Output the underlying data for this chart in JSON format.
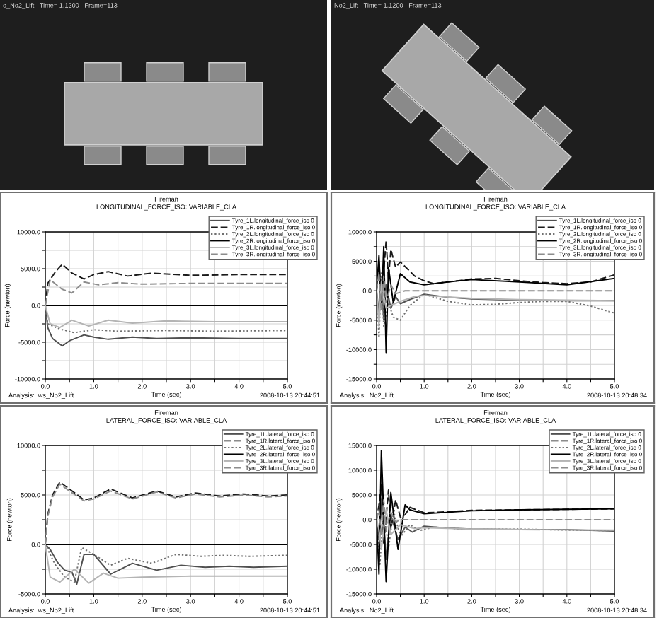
{
  "chart_data": [
    {
      "type": "other",
      "title": "o_No2_Lift   Time= 1.1200   Frame=113"
    },
    {
      "type": "other",
      "title": "No2_Lift   Time= 1.1200   Frame=113"
    },
    {
      "type": "line",
      "title": "Fireman",
      "subtitle": "LONGITUDINAL_FORCE_ISO: VARIABLE_CLA",
      "xlabel": "Time (sec)",
      "ylabel": "Force (newton)",
      "annotations": [
        "Analysis:  ws_No2_Lift",
        "2008-10-13 20:44:51"
      ],
      "xlim": [
        0,
        5
      ],
      "ylim": [
        -10000,
        10000
      ],
      "xticks": [
        {
          "value": 0,
          "label": "0.0"
        },
        {
          "value": 0.5,
          "label": null
        },
        {
          "value": 1,
          "label": "1.0"
        },
        {
          "value": 1.5,
          "label": null
        },
        {
          "value": 2,
          "label": "2.0"
        },
        {
          "value": 2.5,
          "label": null
        },
        {
          "value": 3,
          "label": "3.0"
        },
        {
          "value": 3.5,
          "label": null
        },
        {
          "value": 4,
          "label": "4.0"
        },
        {
          "value": 4.5,
          "label": null
        },
        {
          "value": 5,
          "label": "5.0"
        }
      ],
      "yticks": [
        {
          "value": -10000,
          "label": "-10000.0"
        },
        {
          "value": -7500,
          "label": null
        },
        {
          "value": -5000,
          "label": "-5000.0"
        },
        {
          "value": -2500,
          "label": null
        },
        {
          "value": 0,
          "label": "0.0"
        },
        {
          "value": 2500,
          "label": null
        },
        {
          "value": 5000,
          "label": "5000.0"
        },
        {
          "value": 7500,
          "label": null
        },
        {
          "value": 10000,
          "label": "10000.0"
        }
      ],
      "grid": true,
      "legend": "top right",
      "series": [
        {
          "name": "Tyre_1L.longitudinal_force_iso 0",
          "color": "#505050",
          "line_style": "solid",
          "x": [
            0,
            0.05,
            0.15,
            0.35,
            0.5,
            0.8,
            1.0,
            1.3,
            1.8,
            2.3,
            3.0,
            4.0,
            5.0
          ],
          "values": [
            0,
            -3000,
            -4500,
            -5500,
            -4800,
            -4000,
            -4300,
            -4600,
            -4300,
            -4500,
            -4400,
            -4500,
            -4500
          ]
        },
        {
          "name": "Tyre_1R.longitudinal_force_iso 0",
          "color": "#1a1a1a",
          "line_style": "dashed",
          "x": [
            0,
            0.05,
            0.2,
            0.35,
            0.55,
            0.8,
            1.0,
            1.3,
            1.7,
            2.2,
            3.0,
            4.0,
            5.0
          ],
          "values": [
            0,
            3000,
            4500,
            5600,
            4400,
            3600,
            4200,
            4600,
            4000,
            4400,
            4100,
            4200,
            4200
          ]
        },
        {
          "name": "Tyre_2L.longitudinal_force_iso 0",
          "color": "#707070",
          "line_style": "dotted",
          "x": [
            0,
            0.05,
            0.3,
            0.6,
            1.0,
            1.5,
            2.5,
            3.5,
            5.0
          ],
          "values": [
            0,
            -2500,
            -3200,
            -3700,
            -3300,
            -3500,
            -3400,
            -3500,
            -3400
          ]
        },
        {
          "name": "Tyre_2R.longitudinal_force_iso 0",
          "color": "#000000",
          "line_style": "solid",
          "x": [
            0,
            5.0
          ],
          "values": [
            0,
            0
          ]
        },
        {
          "name": "Tyre_3L.longitudinal_force_iso 0",
          "color": "#b4b4b4",
          "line_style": "solid",
          "x": [
            0,
            0.1,
            0.3,
            0.55,
            0.9,
            1.3,
            1.8,
            2.5,
            3.5,
            5.0
          ],
          "values": [
            0,
            -2500,
            -3000,
            -2000,
            -2800,
            -2000,
            -2400,
            -2100,
            -2200,
            -2200
          ]
        },
        {
          "name": "Tyre_3R.longitudinal_force_iso 0",
          "color": "#8c8c8c",
          "line_style": "dashed",
          "x": [
            0,
            0.1,
            0.35,
            0.55,
            0.8,
            1.1,
            1.5,
            2.0,
            3.0,
            4.0,
            5.0
          ],
          "values": [
            0,
            3500,
            2200,
            1700,
            3200,
            2800,
            3100,
            2900,
            3000,
            3000,
            3000
          ]
        }
      ]
    },
    {
      "type": "line",
      "title": "Fireman",
      "subtitle": "LONGITUDINAL_FORCE_ISO: VARIABLE_CLA",
      "xlabel": "Time (sec)",
      "ylabel": "Force (newton)",
      "annotations": [
        "Analysis:  No2_Lift",
        "2008-10-13 20:48:34"
      ],
      "xlim": [
        0,
        5
      ],
      "ylim": [
        -15000,
        10000
      ],
      "xticks": [
        {
          "value": 0,
          "label": "0.0"
        },
        {
          "value": 0.5,
          "label": null
        },
        {
          "value": 1,
          "label": "1.0"
        },
        {
          "value": 1.5,
          "label": null
        },
        {
          "value": 2,
          "label": "2.0"
        },
        {
          "value": 2.5,
          "label": null
        },
        {
          "value": 3,
          "label": "3.0"
        },
        {
          "value": 3.5,
          "label": null
        },
        {
          "value": 4,
          "label": "4.0"
        },
        {
          "value": 4.5,
          "label": null
        },
        {
          "value": 5,
          "label": "5.0"
        }
      ],
      "yticks": [
        {
          "value": -15000,
          "label": "-15000.0"
        },
        {
          "value": -12500,
          "label": null
        },
        {
          "value": -10000,
          "label": "-10000.0"
        },
        {
          "value": -7500,
          "label": null
        },
        {
          "value": -5000,
          "label": "-5000.0"
        },
        {
          "value": -2500,
          "label": null
        },
        {
          "value": 0,
          "label": "0.0"
        },
        {
          "value": 2500,
          "label": null
        },
        {
          "value": 5000,
          "label": "5000.0"
        },
        {
          "value": 7500,
          "label": null
        },
        {
          "value": 10000,
          "label": "10000.0"
        }
      ],
      "grid": true,
      "legend": "top right",
      "series": [
        {
          "name": "Tyre_1L.longitudinal_force_iso 0",
          "color": "#505050",
          "line_style": "solid",
          "x": [
            0,
            0.05,
            0.1,
            0.15,
            0.2,
            0.3,
            0.4,
            0.5,
            0.7,
            1.0,
            1.5,
            2.0,
            3.0,
            4.0,
            5.0
          ],
          "values": [
            0,
            -4000,
            2000,
            -5000,
            1000,
            -3000,
            -1000,
            -2200,
            -1500,
            -600,
            -1100,
            -1400,
            -1600,
            -1700,
            -1700
          ]
        },
        {
          "name": "Tyre_1R.longitudinal_force_iso 0",
          "color": "#1a1a1a",
          "line_style": "dashed",
          "x": [
            0,
            0.05,
            0.1,
            0.2,
            0.25,
            0.3,
            0.4,
            0.5,
            0.8,
            1.0,
            1.2,
            1.6,
            2.0,
            2.5,
            3.0,
            3.5,
            4.0,
            4.5,
            5.0
          ],
          "values": [
            0,
            5000,
            -2000,
            8500,
            2000,
            7000,
            4000,
            4900,
            2500,
            1700,
            1200,
            1600,
            2000,
            2100,
            1700,
            1400,
            1200,
            1500,
            2700
          ]
        },
        {
          "name": "Tyre_2L.longitudinal_force_iso 0",
          "color": "#707070",
          "line_style": "dotted",
          "x": [
            0,
            0.05,
            0.1,
            0.15,
            0.25,
            0.35,
            0.5,
            0.7,
            1.0,
            1.5,
            2.0,
            2.5,
            3.0,
            3.5,
            4.0,
            4.5,
            5.0
          ],
          "values": [
            0,
            -8000,
            3000,
            -6000,
            -2000,
            -4500,
            -5000,
            -2500,
            -600,
            -1800,
            -2400,
            -2300,
            -2000,
            -1800,
            -1800,
            -2600,
            -3800
          ]
        },
        {
          "name": "Tyre_2R.longitudinal_force_iso 0",
          "color": "#000000",
          "line_style": "solid",
          "x": [
            0,
            0.05,
            0.1,
            0.15,
            0.2,
            0.25,
            0.35,
            0.5,
            0.7,
            1.0,
            1.5,
            2.0,
            3.0,
            4.0,
            5.0
          ],
          "values": [
            0,
            6000,
            -3000,
            7500,
            -10500,
            4000,
            -2000,
            2900,
            1500,
            1000,
            1500,
            1900,
            1500,
            1000,
            2100
          ]
        },
        {
          "name": "Tyre_3L.longitudinal_force_iso 0",
          "color": "#b4b4b4",
          "line_style": "solid",
          "x": [
            0,
            0.05,
            0.1,
            0.2,
            0.3,
            0.5,
            0.8,
            1.0,
            2.0,
            3.0,
            4.0,
            5.0
          ],
          "values": [
            0,
            -6000,
            1500,
            -3000,
            -2500,
            -1800,
            -1000,
            -800,
            -1300,
            -1500,
            -1600,
            -1700
          ]
        },
        {
          "name": "Tyre_3R.longitudinal_force_iso 0",
          "color": "#8c8c8c",
          "line_style": "dashed",
          "x": [
            0,
            0.05,
            0.1,
            0.15,
            0.2,
            0.3,
            0.4,
            0.6,
            1.0,
            5.0
          ],
          "values": [
            0,
            3000,
            -3500,
            2500,
            -2000,
            1000,
            -500,
            0,
            0,
            0
          ]
        }
      ]
    },
    {
      "type": "line",
      "title": "Fireman",
      "subtitle": "LATERAL_FORCE_ISO: VARIABLE_CLA",
      "xlabel": "Time (sec)",
      "ylabel": "Force (newton)",
      "annotations": [
        "Analysis:  ws_No2_Lift",
        "2008-10-13 20:44:51"
      ],
      "xlim": [
        0,
        5
      ],
      "ylim": [
        -5000,
        10000
      ],
      "xticks": [
        {
          "value": 0,
          "label": "0.0"
        },
        {
          "value": 0.5,
          "label": null
        },
        {
          "value": 1,
          "label": "1.0"
        },
        {
          "value": 1.5,
          "label": null
        },
        {
          "value": 2,
          "label": "2.0"
        },
        {
          "value": 2.5,
          "label": null
        },
        {
          "value": 3,
          "label": "3.0"
        },
        {
          "value": 3.5,
          "label": null
        },
        {
          "value": 4,
          "label": "4.0"
        },
        {
          "value": 4.5,
          "label": null
        },
        {
          "value": 5,
          "label": "5.0"
        }
      ],
      "yticks": [
        {
          "value": -5000,
          "label": "-5000.0"
        },
        {
          "value": -2500,
          "label": null
        },
        {
          "value": 0,
          "label": "0.0"
        },
        {
          "value": 2500,
          "label": null
        },
        {
          "value": 5000,
          "label": "5000.0"
        },
        {
          "value": 7500,
          "label": null
        },
        {
          "value": 10000,
          "label": "10000.0"
        }
      ],
      "grid": true,
      "legend": "top right",
      "series": [
        {
          "name": "Tyre_1L.lateral_force_iso 0",
          "color": "#505050",
          "line_style": "solid",
          "x": [
            0,
            0.1,
            0.25,
            0.4,
            0.55,
            0.65,
            0.8,
            1.0,
            1.35,
            1.8,
            2.3,
            2.8,
            3.3,
            3.8,
            4.3,
            5.0
          ],
          "values": [
            0,
            -500,
            -1800,
            -2600,
            -2800,
            -4000,
            -1000,
            -1000,
            -3000,
            -1900,
            -2600,
            -2100,
            -2300,
            -2200,
            -2300,
            -2200
          ]
        },
        {
          "name": "Tyre_1R.lateral_force_iso 0",
          "color": "#1a1a1a",
          "line_style": "dashed",
          "x": [
            0,
            0.05,
            0.15,
            0.3,
            0.5,
            0.8,
            1.0,
            1.35,
            1.8,
            2.3,
            2.7,
            3.1,
            3.6,
            4.1,
            4.6,
            5.0
          ],
          "values": [
            0,
            3000,
            5000,
            6300,
            5600,
            4500,
            4700,
            5600,
            4700,
            5400,
            4800,
            5200,
            4900,
            5100,
            4900,
            5000
          ]
        },
        {
          "name": "Tyre_2L.lateral_force_iso 0",
          "color": "#707070",
          "line_style": "dotted",
          "x": [
            0,
            0.2,
            0.4,
            0.6,
            0.75,
            1.0,
            1.35,
            1.7,
            2.2,
            2.7,
            3.2,
            3.7,
            4.2,
            5.0
          ],
          "values": [
            0,
            -2000,
            -3300,
            -3800,
            -300,
            -1000,
            -2100,
            -1400,
            -1900,
            -1000,
            -1200,
            -1100,
            -1200,
            -1100
          ]
        },
        {
          "name": "Tyre_2R.lateral_force_iso 0",
          "color": "#000000",
          "line_style": "solid",
          "x": [
            0,
            5.0
          ],
          "values": [
            0,
            0
          ]
        },
        {
          "name": "Tyre_3L.lateral_force_iso 0",
          "color": "#b4b4b4",
          "line_style": "solid",
          "x": [
            0,
            0.1,
            0.3,
            0.6,
            0.9,
            1.2,
            1.5,
            2.0,
            3.0,
            4.0,
            5.0
          ],
          "values": [
            0,
            -3300,
            -3800,
            -2500,
            -3900,
            -2900,
            -3400,
            -3300,
            -3200,
            -3200,
            -3200
          ]
        },
        {
          "name": "Tyre_3R.lateral_force_iso 0",
          "color": "#8c8c8c",
          "line_style": "dashed",
          "x": [
            0,
            0.05,
            0.15,
            0.3,
            0.5,
            0.8,
            1.0,
            1.35,
            1.8,
            2.3,
            2.7,
            3.1,
            3.6,
            4.1,
            4.6,
            5.0
          ],
          "values": [
            0,
            2800,
            4800,
            6100,
            5400,
            4400,
            4600,
            5400,
            4600,
            5300,
            4700,
            5100,
            4800,
            5000,
            4800,
            4900
          ]
        }
      ]
    },
    {
      "type": "line",
      "title": "Fireman",
      "subtitle": "LATERAL_FORCE_ISO: VARIABLE_CLA",
      "xlabel": "Time (sec)",
      "ylabel": "Force (newton)",
      "annotations": [
        "Analysis:  No2_Lift",
        "2008-10-13 20:48:34"
      ],
      "xlim": [
        0,
        5
      ],
      "ylim": [
        -15000,
        15000
      ],
      "xticks": [
        {
          "value": 0,
          "label": "0.0"
        },
        {
          "value": 0.5,
          "label": null
        },
        {
          "value": 1,
          "label": "1.0"
        },
        {
          "value": 1.5,
          "label": null
        },
        {
          "value": 2,
          "label": "2.0"
        },
        {
          "value": 2.5,
          "label": null
        },
        {
          "value": 3,
          "label": "3.0"
        },
        {
          "value": 3.5,
          "label": null
        },
        {
          "value": 4,
          "label": "4.0"
        },
        {
          "value": 4.5,
          "label": null
        },
        {
          "value": 5,
          "label": "5.0"
        }
      ],
      "yticks": [
        {
          "value": -15000,
          "label": "-15000.0"
        },
        {
          "value": -10000,
          "label": "-10000.0"
        },
        {
          "value": -5000,
          "label": "-5000.0"
        },
        {
          "value": 0,
          "label": "0.0"
        },
        {
          "value": 5000,
          "label": "5000.0"
        },
        {
          "value": 10000,
          "label": "10000.0"
        },
        {
          "value": 15000,
          "label": "15000.0"
        }
      ],
      "grid": true,
      "legend": "top right",
      "series": [
        {
          "name": "Tyre_1L.lateral_force_iso 0",
          "color": "#505050",
          "line_style": "solid",
          "x": [
            0,
            0.05,
            0.12,
            0.2,
            0.3,
            0.45,
            0.6,
            0.75,
            1.0,
            1.5,
            2.0,
            3.0,
            4.0,
            5.0
          ],
          "values": [
            0,
            -4000,
            5000,
            -8000,
            1000,
            -4000,
            -1500,
            -2500,
            -1300,
            -1700,
            -1900,
            -2000,
            -2000,
            -2300
          ]
        },
        {
          "name": "Tyre_1R.lateral_force_iso 0",
          "color": "#1a1a1a",
          "line_style": "dashed",
          "x": [
            0,
            0.05,
            0.1,
            0.15,
            0.25,
            0.3,
            0.4,
            0.5,
            0.6,
            0.7,
            1.0,
            1.5,
            2.0,
            3.0,
            4.0,
            5.0
          ],
          "values": [
            0,
            3000,
            7000,
            -5000,
            6000,
            -2000,
            4000,
            500,
            1000,
            2500,
            1400,
            1600,
            1900,
            2000,
            2100,
            2200
          ]
        },
        {
          "name": "Tyre_2L.lateral_force_iso 0",
          "color": "#707070",
          "line_style": "dotted",
          "x": [
            0,
            0.07,
            0.15,
            0.25,
            0.35,
            0.5,
            0.7,
            0.9,
            1.2,
            2.0,
            3.0,
            4.0,
            5.0
          ],
          "values": [
            0,
            -9000,
            3000,
            -6000,
            2000,
            -3500,
            -1000,
            -2200,
            -1500,
            -2000,
            -1900,
            -2100,
            -2200
          ]
        },
        {
          "name": "Tyre_2R.lateral_force_iso 0",
          "color": "#000000",
          "line_style": "solid",
          "x": [
            0,
            0.05,
            0.1,
            0.2,
            0.3,
            0.45,
            0.6,
            0.7,
            1.0,
            2.0,
            3.0,
            4.0,
            5.0
          ],
          "values": [
            0,
            -11000,
            14000,
            -12500,
            5500,
            -6000,
            3000,
            2000,
            1200,
            1800,
            2000,
            2100,
            2200
          ]
        },
        {
          "name": "Tyre_3L.lateral_force_iso 0",
          "color": "#b4b4b4",
          "line_style": "solid",
          "x": [
            0,
            0.05,
            0.1,
            0.2,
            0.3,
            0.5,
            0.8,
            1.0,
            2.0,
            3.0,
            5.0
          ],
          "values": [
            0,
            -2000,
            -6000,
            2000,
            -3000,
            -1000,
            -1800,
            -1600,
            -1900,
            -2000,
            -2100
          ]
        },
        {
          "name": "Tyre_3R.lateral_force_iso 0",
          "color": "#8c8c8c",
          "line_style": "dashed",
          "x": [
            0,
            0.05,
            0.1,
            0.15,
            0.2,
            0.3,
            0.4,
            0.5,
            5.0
          ],
          "values": [
            0,
            2000,
            -3000,
            4000,
            -2000,
            1500,
            -500,
            0,
            0
          ]
        }
      ]
    }
  ]
}
